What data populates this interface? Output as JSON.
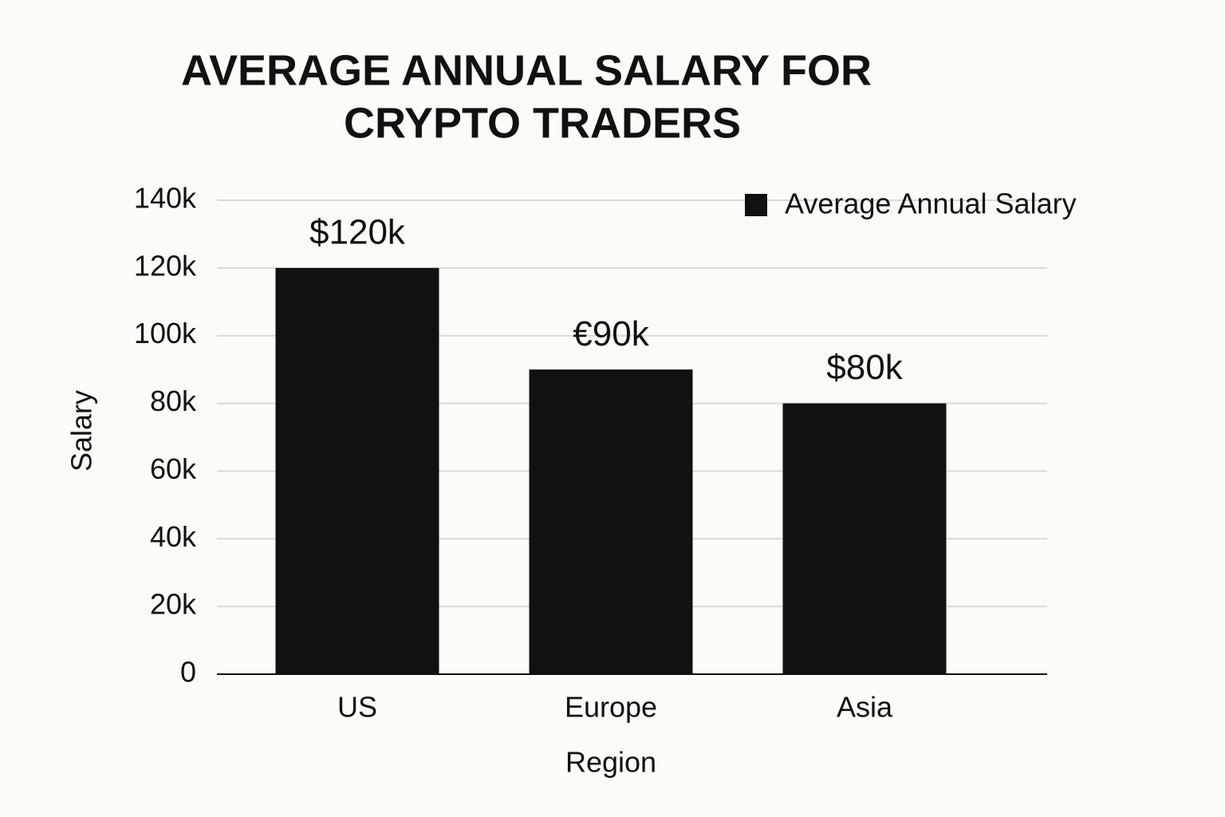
{
  "chart_data": {
    "type": "bar",
    "title": [
      "AVERAGE ANNUAL SALARY FOR",
      "CRYPTO TRADERS"
    ],
    "x_label": "Region",
    "y_label": "Salary",
    "categories": [
      "US",
      "Europe",
      "Asia"
    ],
    "series": [
      {
        "name": "Average Annual Salary",
        "color": "#111111",
        "values": [
          120000,
          90000,
          80000
        ],
        "value_labels": [
          "$120k",
          "€90k",
          "$80k"
        ]
      }
    ],
    "ylim": [
      0,
      140000
    ],
    "yticks": [
      0,
      {
        "value": 20000,
        "label": "20k"
      },
      {
        "value": 40000,
        "label": "40k"
      },
      {
        "value": 60000,
        "label": "60k"
      },
      {
        "value": 80000,
        "label": "80k"
      },
      {
        "value": 100000,
        "label": "100k"
      },
      {
        "value": 120000,
        "label": "120k"
      },
      {
        "value": 140000,
        "label": "140k"
      }
    ],
    "grid": true,
    "legend": "upper right"
  }
}
